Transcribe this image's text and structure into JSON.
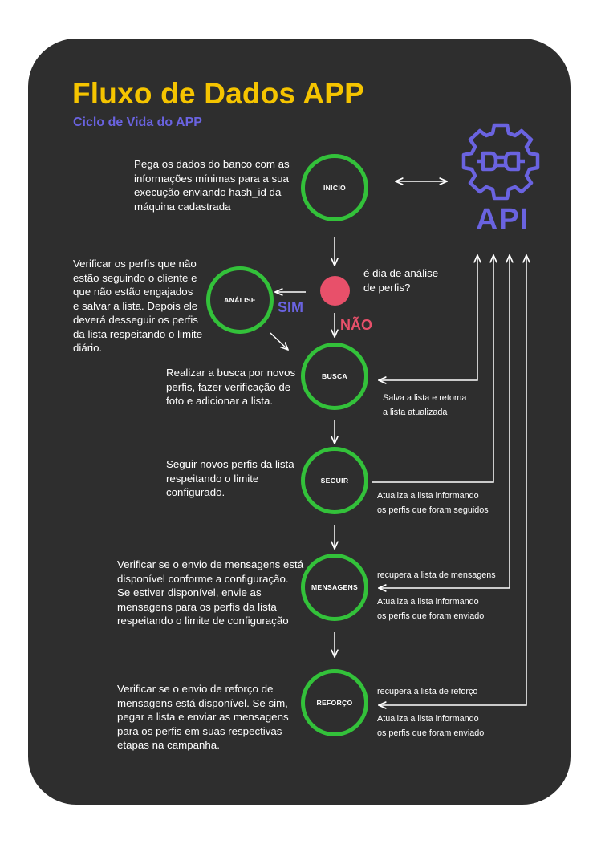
{
  "header": {
    "title": "Fluxo de Dados APP",
    "subtitle": "Ciclo de Vida do APP"
  },
  "colors": {
    "background": "#2e2e2e",
    "title": "#f5c400",
    "accent": "#6a63e0",
    "node_ring": "#33c13a",
    "decision": "#e8506a",
    "text": "#ffffff"
  },
  "api": {
    "label": "API",
    "icon": "gear-plug-icon"
  },
  "nodes": {
    "inicio": "INICIO",
    "analise": "ANÁLISE",
    "busca": "BUSCA",
    "seguir": "SEGUIR",
    "mensagens": "MENSAGENS",
    "reforco": "REFORÇO"
  },
  "decision": {
    "question": "é dia de análise\nde perfis?",
    "yes": "SIM",
    "no": "NÃO"
  },
  "descriptions": {
    "inicio": "Pega os dados do banco com as\ninformações mínimas para a sua\nexecução enviando hash_id da\nmáquina cadastrada",
    "analise": "Verificar os perfis que não\nestão seguindo o cliente e\nque não estão engajados\ne salvar a lista. Depois ele\ndeverá desseguir os perfis\nda lista respeitando o limite\ndiário.",
    "busca": "Realizar a busca por novos\nperfis, fazer verificação de\nfoto e adicionar a lista.",
    "seguir": "Seguir novos perfis da lista\nrespeitando o limite\nconfigurado.",
    "mensagens": "Verificar se o envio de mensagens está\ndisponível conforme a configuração.\nSe estiver disponível, envie as\nmensagens para os perfis da lista\nrespeitando o limite de configuração",
    "reforco": "Verificar se o envio de reforço de\nmensagens está disponível. Se sim,\npegar a lista e enviar as mensagens\npara os perfis em suas respectivas\netapas na campanha."
  },
  "api_notes": {
    "busca": "Salva a lista e retorna\na lista atualizada",
    "seguir": "Atualiza a lista informando\nos perfis que foram seguidos",
    "mensagens_get": "recupera a lista de mensagens",
    "mensagens_update": "Atualiza a lista informando\nos perfis que foram enviado",
    "reforco_get": "recupera a lista de reforço",
    "reforco_update": "Atualiza a lista informando\nos perfis que foram enviado"
  }
}
